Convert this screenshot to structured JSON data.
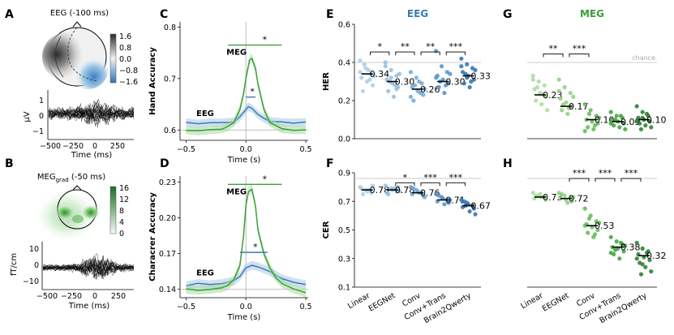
{
  "colors": {
    "eeg": "#3a7ab5",
    "eeg_band": "#a9c8e4",
    "meg": "#3aa037",
    "meg_band": "#a8d9a0",
    "grey": "#bbbbbb"
  },
  "panels": {
    "A": "A",
    "B": "B",
    "C": "C",
    "D": "D",
    "E": "E",
    "F": "F",
    "G": "G",
    "H": "H"
  },
  "topo_a": {
    "title": "EEG (-100 ms)",
    "cbar_ticks": [
      "1.6",
      "0.8",
      "0.0",
      "−0.8",
      "−1.6"
    ],
    "ylabel": "μV",
    "yticks": [
      "1",
      "0",
      "−1"
    ],
    "xticks": [
      "−500",
      "−250",
      "0",
      "250"
    ],
    "xlabel": "Time (ms)"
  },
  "topo_b": {
    "title_main": "MEG",
    "title_sub": "grad",
    "title_tail": " (-50 ms)",
    "cbar_ticks": [
      "16",
      "12",
      "8",
      "4",
      "0"
    ],
    "ylabel": "fT/cm",
    "yticks": [
      "10",
      "0",
      "−10"
    ],
    "xticks": [
      "−500",
      "−250",
      "0",
      "250"
    ],
    "xlabel": "Time (ms)"
  },
  "chart_data": [
    {
      "id": "C",
      "type": "line",
      "ylabel": "Hand Accuracy",
      "xlabel": "Time (s)",
      "xlim": [
        -0.55,
        0.52
      ],
      "ylim": [
        0.58,
        0.81
      ],
      "xticks": [
        "−0.5",
        "0.0",
        "0.5"
      ],
      "yticks": [
        "0.6",
        "0.7",
        "0.8"
      ],
      "ytick_values": [
        0.6,
        0.7,
        0.8
      ],
      "series": [
        {
          "name": "EEG",
          "x": [
            -0.5,
            -0.4,
            -0.3,
            -0.2,
            -0.1,
            -0.05,
            0.0,
            0.02,
            0.05,
            0.1,
            0.15,
            0.2,
            0.3,
            0.4,
            0.5
          ],
          "y": [
            0.615,
            0.612,
            0.615,
            0.614,
            0.616,
            0.625,
            0.64,
            0.645,
            0.642,
            0.63,
            0.622,
            0.617,
            0.615,
            0.614,
            0.615
          ]
        },
        {
          "name": "MEG",
          "x": [
            -0.5,
            -0.4,
            -0.3,
            -0.2,
            -0.15,
            -0.1,
            -0.05,
            -0.02,
            0.0,
            0.03,
            0.05,
            0.08,
            0.1,
            0.15,
            0.2,
            0.3,
            0.4,
            0.5
          ],
          "y": [
            0.6,
            0.598,
            0.6,
            0.602,
            0.606,
            0.615,
            0.64,
            0.67,
            0.7,
            0.735,
            0.74,
            0.72,
            0.69,
            0.64,
            0.615,
            0.602,
            0.6,
            0.6
          ]
        }
      ],
      "chance": 0.6,
      "sig_meg": {
        "x": [
          -0.15,
          0.3
        ],
        "y": 0.765,
        "label": "*"
      },
      "sig_eeg": {
        "x": [
          0.0,
          0.08
        ],
        "y": 0.664,
        "label": "*"
      },
      "labels": {
        "meg": "MEG",
        "eeg": "EEG"
      }
    },
    {
      "id": "D",
      "type": "line",
      "ylabel": "Characrer Accuracy",
      "xlabel": "Time (s)",
      "xlim": [
        -0.55,
        0.52
      ],
      "ylim": [
        0.133,
        0.235
      ],
      "xticks": [
        "−0.5",
        "0.0",
        "0.5"
      ],
      "yticks": [
        "0.14",
        "0.17",
        "0.20",
        "0.23"
      ],
      "ytick_values": [
        0.14,
        0.17,
        0.2,
        0.23
      ],
      "series": [
        {
          "name": "EEG",
          "x": [
            -0.5,
            -0.4,
            -0.3,
            -0.2,
            -0.1,
            -0.05,
            0.0,
            0.05,
            0.1,
            0.15,
            0.2,
            0.25,
            0.3,
            0.4,
            0.5
          ],
          "y": [
            0.143,
            0.145,
            0.144,
            0.145,
            0.147,
            0.151,
            0.158,
            0.16,
            0.159,
            0.157,
            0.155,
            0.152,
            0.149,
            0.146,
            0.144
          ]
        },
        {
          "name": "MEG",
          "x": [
            -0.5,
            -0.4,
            -0.3,
            -0.2,
            -0.15,
            -0.1,
            -0.05,
            -0.02,
            0.0,
            0.02,
            0.05,
            0.08,
            0.1,
            0.15,
            0.2,
            0.25,
            0.3,
            0.4,
            0.5
          ],
          "y": [
            0.14,
            0.139,
            0.14,
            0.141,
            0.143,
            0.148,
            0.16,
            0.185,
            0.21,
            0.222,
            0.224,
            0.21,
            0.19,
            0.17,
            0.158,
            0.15,
            0.145,
            0.14,
            0.137
          ]
        }
      ],
      "chance": 0.14,
      "sig_meg": {
        "x": [
          -0.15,
          0.3
        ],
        "y": 0.228,
        "label": "*"
      },
      "sig_eeg": {
        "x": [
          -0.05,
          0.18
        ],
        "y": 0.171,
        "label": "*"
      },
      "labels": {
        "meg": "MEG",
        "eeg": "EEG"
      }
    },
    {
      "id": "E",
      "type": "scatter",
      "title": "EEG",
      "ylabel": "HER",
      "ylim": [
        0,
        0.6
      ],
      "yticks": [
        "0.0",
        "0.2",
        "0.4",
        "0.6"
      ],
      "ytick_values": [
        0,
        0.2,
        0.4,
        0.6
      ],
      "chance": 0.4,
      "categories": [
        "Linear",
        "EEGNet",
        "Conv",
        "Conv+Trans",
        "Brain2Qwerty"
      ],
      "shades": [
        "#a9cce8",
        "#8fbde2",
        "#6fa8d6",
        "#4f8fca",
        "#2e6fae"
      ],
      "means": [
        0.34,
        0.3,
        0.26,
        0.3,
        0.33
      ],
      "mean_labels": [
        "0.34",
        "0.30",
        "0.26",
        "0.30",
        "0.33"
      ],
      "points": [
        [
          0.41,
          0.37,
          0.34,
          0.32,
          0.3,
          0.28,
          0.25,
          0.36,
          0.33,
          0.39,
          0.31,
          0.35
        ],
        [
          0.4,
          0.36,
          0.33,
          0.31,
          0.29,
          0.27,
          0.25,
          0.22,
          0.34,
          0.3,
          0.28,
          0.38,
          0.32,
          0.26
        ],
        [
          0.35,
          0.32,
          0.29,
          0.27,
          0.25,
          0.23,
          0.2,
          0.3,
          0.26,
          0.28,
          0.24,
          0.22
        ],
        [
          0.46,
          0.38,
          0.35,
          0.33,
          0.31,
          0.29,
          0.27,
          0.24,
          0.34,
          0.3,
          0.28,
          0.32
        ],
        [
          0.42,
          0.39,
          0.37,
          0.35,
          0.33,
          0.31,
          0.29,
          0.27,
          0.36,
          0.34,
          0.3,
          0.38,
          0.32
        ]
      ],
      "sig": [
        {
          "pair": [
            0,
            1
          ],
          "label": "*"
        },
        {
          "pair": [
            1,
            2
          ],
          "label": "**"
        },
        {
          "pair": [
            2,
            3
          ],
          "label": "**"
        },
        {
          "pair": [
            3,
            4
          ],
          "label": "***"
        }
      ],
      "sig_y": 0.455
    },
    {
      "id": "F",
      "type": "scatter",
      "ylabel": "CER",
      "ylim": [
        0.1,
        0.9
      ],
      "yticks": [
        "0.1",
        "0.3",
        "0.5",
        "0.7",
        "0.9"
      ],
      "ytick_values": [
        0.1,
        0.3,
        0.5,
        0.7,
        0.9
      ],
      "chance": 0.86,
      "categories": [
        "Linear",
        "EEGNet",
        "Conv",
        "Conv+Trans",
        "Brain2Qwerty"
      ],
      "xtick_labels": [
        "Linear",
        "EEGNet",
        "Conv",
        "Conv+Trans",
        "Brain2Qwerty"
      ],
      "shades": [
        "#a9cce8",
        "#8fbde2",
        "#6fa8d6",
        "#4f8fca",
        "#2e6fae"
      ],
      "means": [
        0.78,
        0.78,
        0.76,
        0.71,
        0.67
      ],
      "mean_labels": [
        "0.78",
        "0.78",
        "0.76",
        "0.71",
        "0.67"
      ],
      "points": [
        [
          0.8,
          0.78,
          0.76,
          0.79,
          0.77,
          0.81,
          0.75,
          0.78
        ],
        [
          0.81,
          0.79,
          0.77,
          0.76,
          0.78,
          0.8,
          0.75,
          0.79,
          0.77
        ],
        [
          0.8,
          0.78,
          0.76,
          0.75,
          0.77,
          0.74,
          0.79,
          0.76,
          0.73
        ],
        [
          0.75,
          0.73,
          0.71,
          0.7,
          0.72,
          0.69,
          0.74,
          0.68,
          0.71
        ],
        [
          0.71,
          0.69,
          0.67,
          0.66,
          0.68,
          0.65,
          0.7,
          0.63,
          0.61,
          0.67
        ]
      ],
      "sig": [
        {
          "pair": [
            1,
            2
          ],
          "label": "*"
        },
        {
          "pair": [
            2,
            3
          ],
          "label": "***"
        },
        {
          "pair": [
            3,
            4
          ],
          "label": "***"
        }
      ],
      "sig_y": 0.83
    },
    {
      "id": "G",
      "type": "scatter",
      "title": "MEG",
      "ylim": [
        0,
        0.6
      ],
      "chance": 0.4,
      "chance_label": "chance",
      "categories": [
        "Linear",
        "EEGNet",
        "Conv",
        "Conv+Trans",
        "Brain2Qwerty"
      ],
      "shades": [
        "#a8dc9b",
        "#8ccf80",
        "#5fb956",
        "#3f9f3c",
        "#237a2a"
      ],
      "means": [
        0.23,
        0.17,
        0.1,
        0.09,
        0.1
      ],
      "mean_labels": [
        "0.23",
        "0.17",
        "0.10",
        "0.09",
        "0.10"
      ],
      "points": [
        [
          0.33,
          0.3,
          0.28,
          0.26,
          0.24,
          0.22,
          0.2,
          0.18,
          0.15,
          0.27,
          0.23,
          0.31
        ],
        [
          0.31,
          0.27,
          0.24,
          0.21,
          0.19,
          0.17,
          0.15,
          0.13,
          0.22,
          0.18,
          0.16,
          0.25
        ],
        [
          0.18,
          0.15,
          0.12,
          0.1,
          0.09,
          0.08,
          0.06,
          0.05,
          0.11,
          0.13,
          0.07,
          0.04
        ],
        [
          0.14,
          0.12,
          0.11,
          0.1,
          0.09,
          0.08,
          0.07,
          0.06,
          0.05,
          0.1,
          0.12,
          0.08
        ],
        [
          0.17,
          0.14,
          0.12,
          0.11,
          0.1,
          0.09,
          0.08,
          0.07,
          0.06,
          0.05,
          0.13,
          0.09,
          0.11
        ]
      ],
      "sig": [
        {
          "pair": [
            0,
            1
          ],
          "label": "**"
        },
        {
          "pair": [
            1,
            2
          ],
          "label": "***"
        }
      ],
      "sig_y": 0.445
    },
    {
      "id": "H",
      "type": "scatter",
      "ylim": [
        0.1,
        0.9
      ],
      "chance": 0.86,
      "categories": [
        "Linear",
        "EEGNet",
        "Conv",
        "Conv+Trans",
        "Brain2Qwerty"
      ],
      "xtick_labels": [
        "Linear",
        "EEGNet",
        "Conv",
        "Conv+Trans",
        "Brain2Qwerty"
      ],
      "shades": [
        "#a8dc9b",
        "#8ccf80",
        "#5fb956",
        "#3f9f3c",
        "#237a2a"
      ],
      "means": [
        0.73,
        0.72,
        0.53,
        0.38,
        0.32
      ],
      "mean_labels": [
        "0.73",
        "0.72",
        "0.53",
        "0.38",
        "0.32"
      ],
      "points": [
        [
          0.76,
          0.74,
          0.73,
          0.72,
          0.75,
          0.71,
          0.74,
          0.73
        ],
        [
          0.76,
          0.74,
          0.73,
          0.72,
          0.71,
          0.7,
          0.75,
          0.69,
          0.73
        ],
        [
          0.65,
          0.6,
          0.56,
          0.54,
          0.52,
          0.5,
          0.48,
          0.45,
          0.55,
          0.58,
          0.47,
          0.53
        ],
        [
          0.45,
          0.42,
          0.4,
          0.38,
          0.37,
          0.35,
          0.33,
          0.3,
          0.39,
          0.36,
          0.41,
          0.34
        ],
        [
          0.41,
          0.37,
          0.35,
          0.33,
          0.31,
          0.29,
          0.27,
          0.24,
          0.21,
          0.19,
          0.34,
          0.3,
          0.26
        ]
      ],
      "sig": [
        {
          "pair": [
            1,
            2
          ],
          "label": "***"
        },
        {
          "pair": [
            2,
            3
          ],
          "label": "***"
        },
        {
          "pair": [
            3,
            4
          ],
          "label": "***"
        }
      ],
      "sig_y": 0.86
    }
  ]
}
